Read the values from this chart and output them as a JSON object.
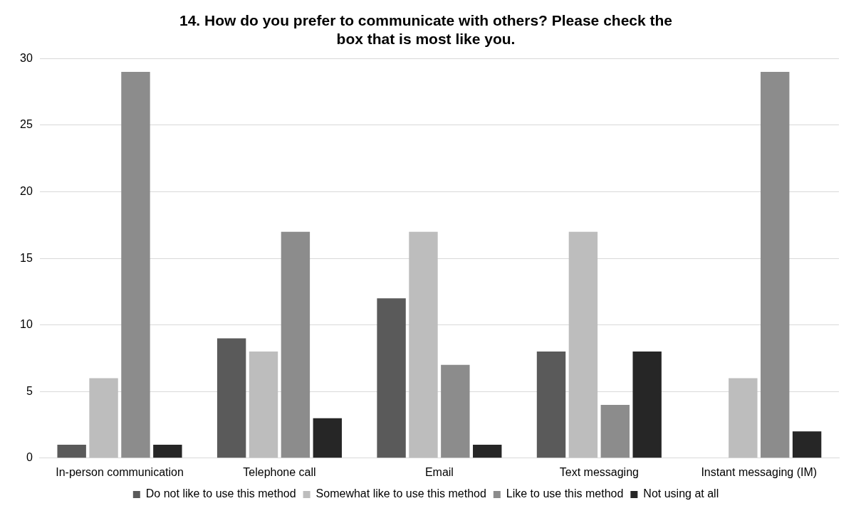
{
  "chart_data": {
    "type": "bar",
    "title": "14. How do you prefer to communicate with others? Please check the box that is most like you.",
    "categories": [
      "In-person communication",
      "Telephone call",
      "Email",
      "Text messaging",
      "Instant messaging (IM)"
    ],
    "series": [
      {
        "name": "Do not like to use this method",
        "color": "#5a5a5a",
        "values": [
          1,
          9,
          12,
          8,
          0
        ]
      },
      {
        "name": "Somewhat like to use this method",
        "color": "#bdbdbd",
        "values": [
          6,
          8,
          17,
          17,
          6
        ]
      },
      {
        "name": "Like to use this method",
        "color": "#8c8c8c",
        "values": [
          29,
          17,
          7,
          4,
          29
        ]
      },
      {
        "name": "Not using at all",
        "color": "#262626",
        "values": [
          1,
          3,
          1,
          8,
          2
        ]
      }
    ],
    "ylim": [
      0,
      30
    ],
    "yticks": [
      0,
      5,
      10,
      15,
      20,
      25,
      30
    ],
    "grid": "y",
    "legend": "bottom"
  }
}
